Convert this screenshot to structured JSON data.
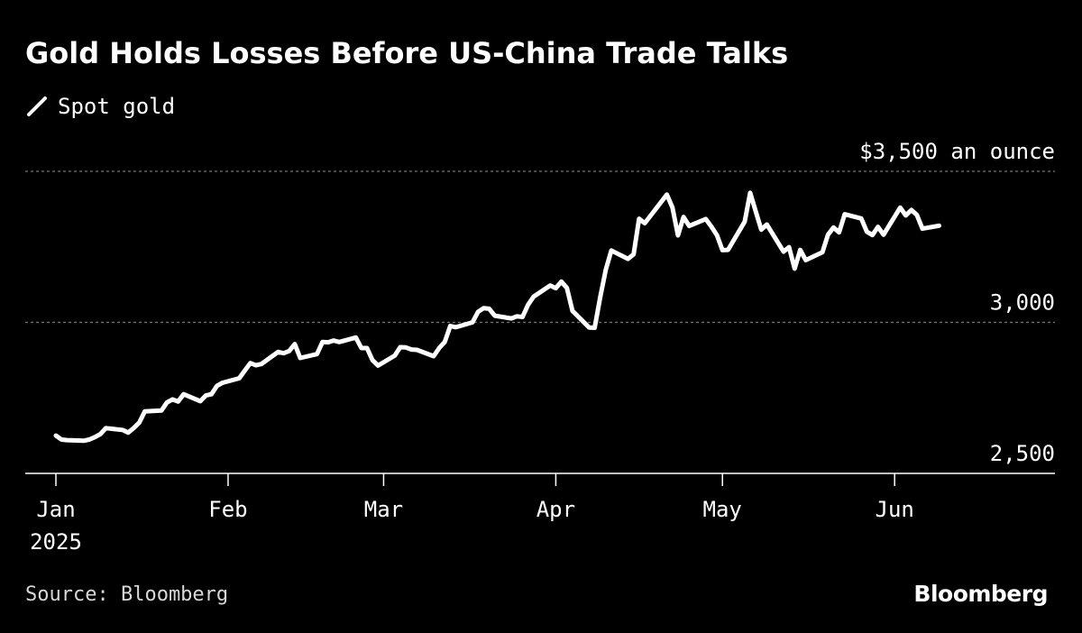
{
  "title": "Gold Holds Losses Before US-China Trade Talks",
  "legend": {
    "label": "Spot gold"
  },
  "source": "Source: Bloomberg",
  "brand": "Bloomberg",
  "colors": {
    "background": "#000000",
    "line": "#ffffff",
    "grid": "#777777"
  },
  "chart_data": {
    "type": "line",
    "title": "Gold Holds Losses Before US-China Trade Talks",
    "ylabel": "$3,500 an ounce",
    "y_unit": "an ounce",
    "ylim": [
      2500,
      3500
    ],
    "y_ticks": [
      {
        "value": 3500,
        "label": "$3,500 an ounce"
      },
      {
        "value": 3000,
        "label": "3,000"
      },
      {
        "value": 2500,
        "label": "2,500"
      }
    ],
    "x_ticks": [
      {
        "date": "2025-01-01",
        "label": "Jan",
        "sublabel": "2025"
      },
      {
        "date": "2025-02-01",
        "label": "Feb"
      },
      {
        "date": "2025-03-01",
        "label": "Mar"
      },
      {
        "date": "2025-04-01",
        "label": "Apr"
      },
      {
        "date": "2025-05-01",
        "label": "May"
      },
      {
        "date": "2025-06-01",
        "label": "Jun"
      }
    ],
    "xlim": [
      "2025-01-01",
      "2025-07-01"
    ],
    "grid": true,
    "legend_position": "top-left",
    "series": [
      {
        "name": "Spot gold",
        "points": [
          [
            "2025-01-01",
            2625
          ],
          [
            "2025-01-02",
            2612
          ],
          [
            "2025-01-03",
            2610
          ],
          [
            "2025-01-06",
            2608
          ],
          [
            "2025-01-07",
            2612
          ],
          [
            "2025-01-08",
            2620
          ],
          [
            "2025-01-09",
            2630
          ],
          [
            "2025-01-10",
            2650
          ],
          [
            "2025-01-13",
            2644
          ],
          [
            "2025-01-14",
            2635
          ],
          [
            "2025-01-15",
            2650
          ],
          [
            "2025-01-16",
            2668
          ],
          [
            "2025-01-17",
            2705
          ],
          [
            "2025-01-20",
            2708
          ],
          [
            "2025-01-21",
            2735
          ],
          [
            "2025-01-22",
            2745
          ],
          [
            "2025-01-23",
            2738
          ],
          [
            "2025-01-24",
            2762
          ],
          [
            "2025-01-27",
            2739
          ],
          [
            "2025-01-28",
            2758
          ],
          [
            "2025-01-29",
            2762
          ],
          [
            "2025-01-30",
            2790
          ],
          [
            "2025-01-31",
            2800
          ],
          [
            "2025-02-03",
            2815
          ],
          [
            "2025-02-04",
            2840
          ],
          [
            "2025-02-05",
            2865
          ],
          [
            "2025-02-06",
            2858
          ],
          [
            "2025-02-07",
            2862
          ],
          [
            "2025-02-10",
            2902
          ],
          [
            "2025-02-11",
            2898
          ],
          [
            "2025-02-12",
            2905
          ],
          [
            "2025-02-13",
            2928
          ],
          [
            "2025-02-14",
            2882
          ],
          [
            "2025-02-17",
            2895
          ],
          [
            "2025-02-18",
            2935
          ],
          [
            "2025-02-19",
            2934
          ],
          [
            "2025-02-20",
            2940
          ],
          [
            "2025-02-21",
            2935
          ],
          [
            "2025-02-24",
            2950
          ],
          [
            "2025-02-25",
            2915
          ],
          [
            "2025-02-26",
            2915
          ],
          [
            "2025-02-27",
            2875
          ],
          [
            "2025-02-28",
            2857
          ],
          [
            "2025-03-03",
            2890
          ],
          [
            "2025-03-04",
            2918
          ],
          [
            "2025-03-05",
            2917
          ],
          [
            "2025-03-06",
            2910
          ],
          [
            "2025-03-07",
            2909
          ],
          [
            "2025-03-10",
            2888
          ],
          [
            "2025-03-11",
            2915
          ],
          [
            "2025-03-12",
            2935
          ],
          [
            "2025-03-13",
            2988
          ],
          [
            "2025-03-14",
            2984
          ],
          [
            "2025-03-17",
            3000
          ],
          [
            "2025-03-18",
            3035
          ],
          [
            "2025-03-19",
            3047
          ],
          [
            "2025-03-20",
            3045
          ],
          [
            "2025-03-21",
            3022
          ],
          [
            "2025-03-24",
            3013
          ],
          [
            "2025-03-25",
            3020
          ],
          [
            "2025-03-26",
            3018
          ],
          [
            "2025-03-27",
            3058
          ],
          [
            "2025-03-28",
            3085
          ],
          [
            "2025-03-31",
            3122
          ],
          [
            "2025-04-01",
            3113
          ],
          [
            "2025-04-02",
            3135
          ],
          [
            "2025-04-03",
            3114
          ],
          [
            "2025-04-04",
            3038
          ],
          [
            "2025-04-07",
            2983
          ],
          [
            "2025-04-08",
            2982
          ],
          [
            "2025-04-09",
            3084
          ],
          [
            "2025-04-10",
            3175
          ],
          [
            "2025-04-11",
            3238
          ],
          [
            "2025-04-14",
            3210
          ],
          [
            "2025-04-15",
            3225
          ],
          [
            "2025-04-16",
            3343
          ],
          [
            "2025-04-17",
            3328
          ],
          [
            "2025-04-21",
            3423
          ],
          [
            "2025-04-22",
            3380
          ],
          [
            "2025-04-23",
            3288
          ],
          [
            "2025-04-24",
            3349
          ],
          [
            "2025-04-25",
            3319
          ],
          [
            "2025-04-28",
            3342
          ],
          [
            "2025-04-29",
            3317
          ],
          [
            "2025-04-30",
            3289
          ],
          [
            "2025-05-01",
            3239
          ],
          [
            "2025-05-02",
            3240
          ],
          [
            "2025-05-05",
            3333
          ],
          [
            "2025-05-06",
            3429
          ],
          [
            "2025-05-07",
            3367
          ],
          [
            "2025-05-08",
            3307
          ],
          [
            "2025-05-09",
            3324
          ],
          [
            "2025-05-12",
            3234
          ],
          [
            "2025-05-13",
            3249
          ],
          [
            "2025-05-14",
            3178
          ],
          [
            "2025-05-15",
            3240
          ],
          [
            "2025-05-16",
            3206
          ],
          [
            "2025-05-19",
            3232
          ],
          [
            "2025-05-20",
            3290
          ],
          [
            "2025-05-21",
            3314
          ],
          [
            "2025-05-22",
            3298
          ],
          [
            "2025-05-23",
            3358
          ],
          [
            "2025-05-26",
            3344
          ],
          [
            "2025-05-27",
            3300
          ],
          [
            "2025-05-28",
            3289
          ],
          [
            "2025-05-29",
            3316
          ],
          [
            "2025-05-30",
            3290
          ],
          [
            "2025-06-02",
            3380
          ],
          [
            "2025-06-03",
            3354
          ],
          [
            "2025-06-04",
            3372
          ],
          [
            "2025-06-05",
            3356
          ],
          [
            "2025-06-06",
            3310
          ],
          [
            "2025-06-09",
            3320
          ]
        ]
      }
    ]
  }
}
